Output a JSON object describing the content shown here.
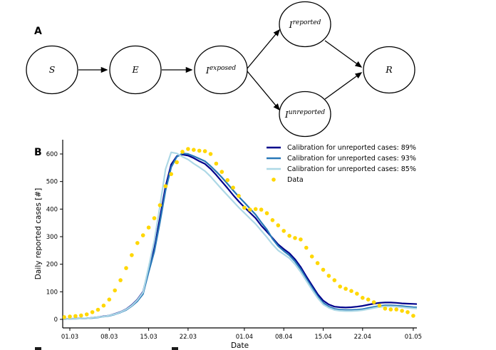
{
  "panels": {
    "a_label": "A",
    "b_label": "B"
  },
  "diagram": {
    "nodes": [
      {
        "id": "S",
        "base": "S",
        "sup": ""
      },
      {
        "id": "E",
        "base": "E",
        "sup": ""
      },
      {
        "id": "Iexposed",
        "base": "I",
        "sup": "exposed"
      },
      {
        "id": "Ireported",
        "base": "I",
        "sup": "reported"
      },
      {
        "id": "Iunreported",
        "base": "I",
        "sup": "unreported"
      },
      {
        "id": "R",
        "base": "R",
        "sup": ""
      }
    ]
  },
  "chart_data": {
    "type": "line",
    "title": "",
    "xlabel": "Date",
    "ylabel": "Daily reported cases [#]",
    "ylim": [
      -31,
      650
    ],
    "grid": false,
    "legend_position": "upper right",
    "x_ticks": {
      "days": [
        0,
        7,
        14,
        21,
        31,
        38,
        45,
        52,
        61
      ],
      "labels": [
        "01.03",
        "08.03",
        "15.03",
        "22.03",
        "01.04",
        "08.04",
        "15.04",
        "22.04",
        "01.05"
      ]
    },
    "y_ticks": [
      0,
      100,
      200,
      300,
      400,
      500,
      600
    ],
    "series": [
      {
        "name": "Calibration for unreported cases: 89%",
        "color": "#00008B",
        "start_day": -1,
        "values": [
          1,
          2,
          3,
          3,
          4,
          6,
          8,
          11,
          14,
          20,
          27,
          37,
          52,
          72,
          100,
          182,
          258,
          368,
          482,
          562,
          592,
          598,
          594,
          585,
          574,
          564,
          546,
          524,
          500,
          476,
          451,
          428,
          407,
          387,
          367,
          340,
          318,
          295,
          272,
          255,
          240,
          218,
          190,
          156,
          124,
          92,
          68,
          54,
          46,
          44,
          43,
          44,
          46,
          49,
          53,
          57,
          60,
          61,
          61,
          60,
          58,
          57,
          56,
          55
        ]
      },
      {
        "name": "Calibration for unreported cases: 93%",
        "color": "#2878B8",
        "start_day": -1,
        "values": [
          1,
          2,
          2,
          3,
          4,
          5,
          7,
          10,
          13,
          18,
          25,
          34,
          48,
          66,
          92,
          172,
          246,
          352,
          468,
          552,
          590,
          602,
          600,
          592,
          583,
          574,
          556,
          536,
          515,
          492,
          468,
          445,
          424,
          402,
          380,
          352,
          326,
          292,
          266,
          248,
          232,
          210,
          182,
          148,
          116,
          84,
          60,
          46,
          38,
          35,
          34,
          34,
          35,
          37,
          41,
          45,
          49,
          51,
          51,
          50,
          48,
          46,
          44,
          43
        ]
      },
      {
        "name": "Calibration for unreported cases: 85%",
        "color": "#ADD8E6",
        "start_day": -1,
        "values": [
          1,
          2,
          2,
          3,
          4,
          6,
          8,
          10,
          14,
          19,
          26,
          36,
          50,
          70,
          98,
          190,
          285,
          410,
          545,
          606,
          602,
          590,
          580,
          565,
          552,
          538,
          518,
          495,
          472,
          450,
          428,
          406,
          386,
          366,
          346,
          322,
          298,
          272,
          250,
          236,
          222,
          200,
          172,
          140,
          108,
          78,
          54,
          42,
          34,
          31,
          30,
          30,
          31,
          33,
          37,
          41,
          45,
          47,
          47,
          46,
          44,
          42,
          40,
          39
        ]
      }
    ],
    "scatter": {
      "name": "Data",
      "color": "#FFD700",
      "start_day": -1,
      "values": [
        8,
        10,
        12,
        14,
        18,
        26,
        35,
        50,
        72,
        105,
        142,
        186,
        233,
        277,
        305,
        333,
        367,
        414,
        483,
        527,
        570,
        608,
        618,
        615,
        612,
        610,
        600,
        565,
        535,
        505,
        478,
        448,
        405,
        398,
        400,
        398,
        385,
        360,
        341,
        321,
        303,
        295,
        290,
        260,
        228,
        204,
        180,
        158,
        142,
        119,
        111,
        103,
        93,
        78,
        72,
        62,
        50,
        39,
        36,
        36,
        31,
        26,
        13
      ]
    }
  }
}
